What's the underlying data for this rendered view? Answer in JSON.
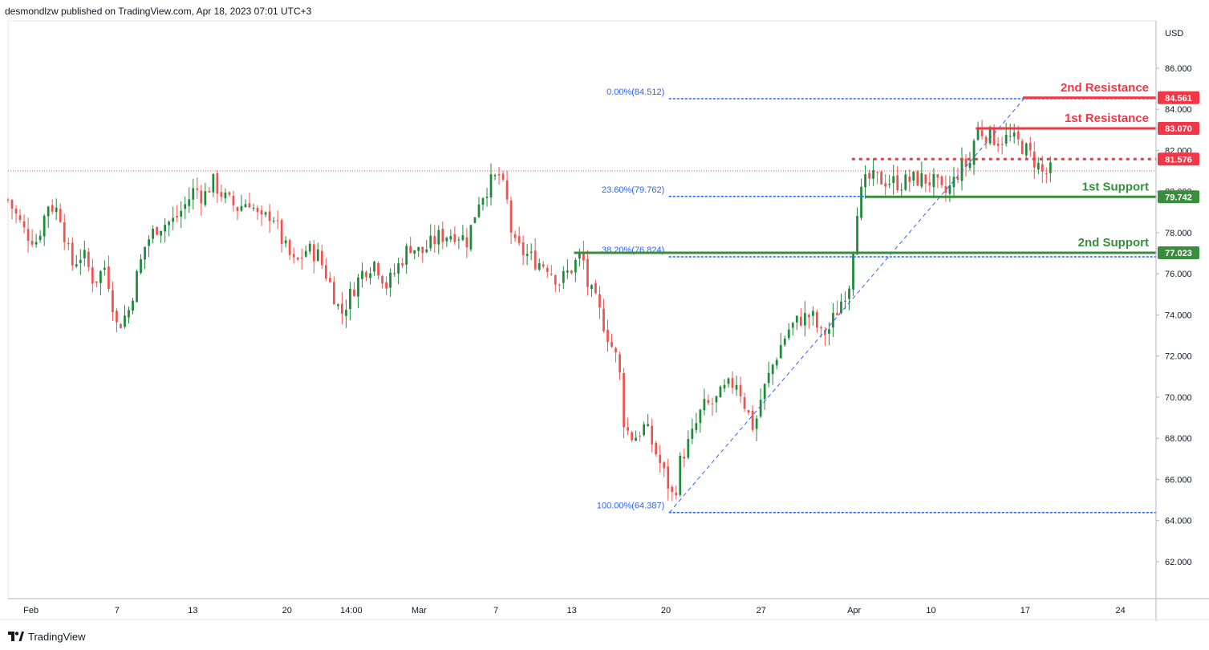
{
  "header": {
    "attribution": "desmondlzw published on TradingView.com, Apr 18, 2023 07:01 UTC+3"
  },
  "footer": {
    "brand": "TradingView",
    "brand_icon": "tradingview-logo-icon"
  },
  "colors": {
    "up": "#26a69a",
    "up_dark": "#1e8a3a",
    "down": "#ef5350",
    "resistance": "#f23645",
    "support": "#388e3c",
    "fib": "#2962ff"
  },
  "chart_data": {
    "type": "candlestick",
    "currency_label": "USD",
    "ylim": [
      60.2,
      88.3
    ],
    "y_ticks": [
      "62.000",
      "64.000",
      "66.000",
      "68.000",
      "70.000",
      "72.000",
      "74.000",
      "76.000",
      "78.000",
      "80.000",
      "82.000",
      "84.000",
      "86.000"
    ],
    "y_tick_values": [
      62,
      64,
      66,
      68,
      70,
      72,
      74,
      76,
      78,
      80,
      82,
      84,
      86
    ],
    "x_ticks": [
      {
        "label": "Feb",
        "t": 0.02
      },
      {
        "label": "7",
        "t": 0.095
      },
      {
        "label": "13",
        "t": 0.161
      },
      {
        "label": "20",
        "t": 0.243
      },
      {
        "label": "14:00",
        "t": 0.299
      },
      {
        "label": "Mar",
        "t": 0.358
      },
      {
        "label": "7",
        "t": 0.425
      },
      {
        "label": "13",
        "t": 0.491
      },
      {
        "label": "20",
        "t": 0.573
      },
      {
        "label": "27",
        "t": 0.656
      },
      {
        "label": "Apr",
        "t": 0.737
      },
      {
        "label": "10",
        "t": 0.804
      },
      {
        "label": "17",
        "t": 0.886
      },
      {
        "label": "24",
        "t": 0.969
      }
    ],
    "levels": [
      {
        "name": "2nd Resistance",
        "value": 84.561,
        "label": "84.561",
        "kind": "resistance",
        "style": "solid",
        "t_start": 0.884
      },
      {
        "name": "1st Resistance",
        "value": 83.07,
        "label": "83.070",
        "kind": "resistance",
        "style": "solid",
        "t_start": 0.843
      },
      {
        "name": "",
        "value": 81.576,
        "label": "81.576",
        "kind": "resistance",
        "style": "dotted",
        "t_start": 0.735
      },
      {
        "name": "1st Support",
        "value": 79.742,
        "label": "79.742",
        "kind": "support",
        "style": "solid",
        "t_start": 0.747
      },
      {
        "name": "2nd Support",
        "value": 77.023,
        "label": "77.023",
        "kind": "support",
        "style": "solid",
        "t_start": 0.493
      }
    ],
    "fib": {
      "t_start": 0.576,
      "t_end": 0.885,
      "levels": [
        {
          "label": "0.00%(84.512)",
          "value": 84.512
        },
        {
          "label": "23.60%(79.762)",
          "value": 79.762
        },
        {
          "label": "38.20%(76.824)",
          "value": 76.824
        },
        {
          "label": "100.00%(64.387)",
          "value": 64.387
        }
      ]
    },
    "current_price_line": 81.0,
    "anchors": [
      [
        0.0,
        79.6
      ],
      [
        0.015,
        78.0
      ],
      [
        0.025,
        77.6
      ],
      [
        0.035,
        79.4
      ],
      [
        0.045,
        79.0
      ],
      [
        0.055,
        76.4
      ],
      [
        0.065,
        77.0
      ],
      [
        0.075,
        75.6
      ],
      [
        0.085,
        76.4
      ],
      [
        0.095,
        73.4
      ],
      [
        0.105,
        74.2
      ],
      [
        0.11,
        75.4
      ],
      [
        0.12,
        77.5
      ],
      [
        0.13,
        78.3
      ],
      [
        0.145,
        78.6
      ],
      [
        0.155,
        79.4
      ],
      [
        0.163,
        80.2
      ],
      [
        0.17,
        79.7
      ],
      [
        0.178,
        80.5
      ],
      [
        0.19,
        79.6
      ],
      [
        0.2,
        79.2
      ],
      [
        0.21,
        79.6
      ],
      [
        0.22,
        78.5
      ],
      [
        0.23,
        79.0
      ],
      [
        0.24,
        77.4
      ],
      [
        0.25,
        76.4
      ],
      [
        0.26,
        77.2
      ],
      [
        0.27,
        76.9
      ],
      [
        0.28,
        75.6
      ],
      [
        0.29,
        74.0
      ],
      [
        0.3,
        75.2
      ],
      [
        0.31,
        76.2
      ],
      [
        0.32,
        76.6
      ],
      [
        0.33,
        75.4
      ],
      [
        0.34,
        76.4
      ],
      [
        0.35,
        77.4
      ],
      [
        0.36,
        77.0
      ],
      [
        0.375,
        77.8
      ],
      [
        0.39,
        78.0
      ],
      [
        0.4,
        77.6
      ],
      [
        0.41,
        79.6
      ],
      [
        0.42,
        80.4
      ],
      [
        0.428,
        80.8
      ],
      [
        0.435,
        79.4
      ],
      [
        0.44,
        77.4
      ],
      [
        0.45,
        77.0
      ],
      [
        0.46,
        76.6
      ],
      [
        0.47,
        76.4
      ],
      [
        0.48,
        75.6
      ],
      [
        0.49,
        76.2
      ],
      [
        0.5,
        77.0
      ],
      [
        0.505,
        75.4
      ],
      [
        0.512,
        74.6
      ],
      [
        0.52,
        73.4
      ],
      [
        0.525,
        72.6
      ],
      [
        0.532,
        71.6
      ],
      [
        0.537,
        68.5
      ],
      [
        0.545,
        68.0
      ],
      [
        0.555,
        68.6
      ],
      [
        0.565,
        67.2
      ],
      [
        0.572,
        66.2
      ],
      [
        0.58,
        65.0
      ],
      [
        0.586,
        67.0
      ],
      [
        0.595,
        68.0
      ],
      [
        0.605,
        69.5
      ],
      [
        0.615,
        69.7
      ],
      [
        0.625,
        70.4
      ],
      [
        0.635,
        70.8
      ],
      [
        0.642,
        69.6
      ],
      [
        0.65,
        68.4
      ],
      [
        0.655,
        69.8
      ],
      [
        0.665,
        71.4
      ],
      [
        0.672,
        72.4
      ],
      [
        0.68,
        73.3
      ],
      [
        0.69,
        73.8
      ],
      [
        0.7,
        74.0
      ],
      [
        0.708,
        73.0
      ],
      [
        0.715,
        73.3
      ],
      [
        0.725,
        74.6
      ],
      [
        0.733,
        75.6
      ],
      [
        0.74,
        79.4
      ],
      [
        0.748,
        80.6
      ],
      [
        0.758,
        80.6
      ],
      [
        0.768,
        80.5
      ],
      [
        0.778,
        80.4
      ],
      [
        0.788,
        80.6
      ],
      [
        0.798,
        80.6
      ],
      [
        0.808,
        80.4
      ],
      [
        0.815,
        79.8
      ],
      [
        0.822,
        80.3
      ],
      [
        0.83,
        81.2
      ],
      [
        0.838,
        81.4
      ],
      [
        0.843,
        83.0
      ],
      [
        0.853,
        82.8
      ],
      [
        0.862,
        82.5
      ],
      [
        0.872,
        82.6
      ],
      [
        0.882,
        82.3
      ],
      [
        0.89,
        81.8
      ],
      [
        0.898,
        81.2
      ],
      [
        0.902,
        80.8
      ],
      [
        0.908,
        81.0
      ]
    ]
  }
}
